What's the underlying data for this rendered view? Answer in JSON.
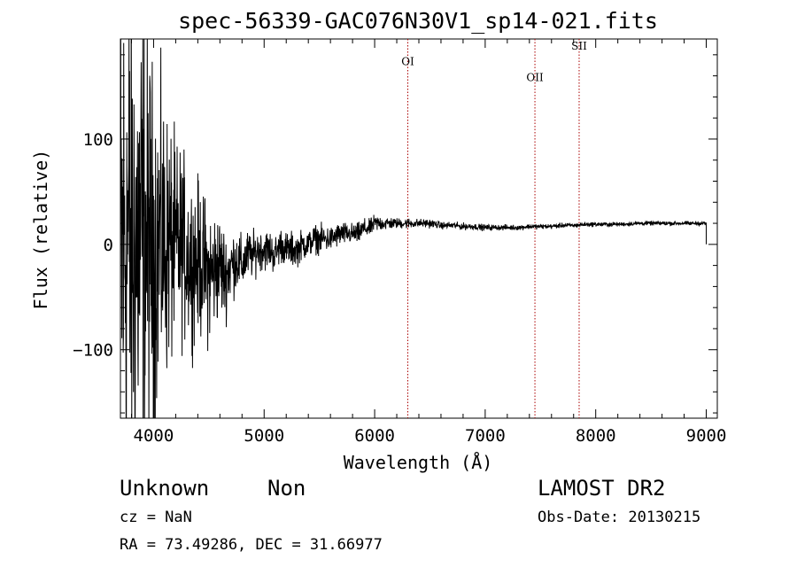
{
  "chart_data": {
    "type": "line",
    "title": "spec-56339-GAC076N30V1_sp14-021.fits",
    "xlabel": "Wavelength (Å)",
    "ylabel": "Flux (relative)",
    "xlim": [
      3700,
      9100
    ],
    "ylim": [
      -165,
      195
    ],
    "x_ticks": [
      4000,
      5000,
      6000,
      7000,
      8000,
      9000
    ],
    "x_tick_labels": [
      "4000",
      "5000",
      "6000",
      "7000",
      "8000",
      "9000"
    ],
    "y_ticks": [
      -100,
      0,
      100
    ],
    "y_tick_labels": [
      "−100",
      "0",
      "100"
    ],
    "grid": false,
    "line_color": "#000000",
    "marker_color": "#aa0000",
    "spectrum": {
      "x": [
        3700,
        3750,
        3800,
        3850,
        3900,
        3950,
        4000,
        4050,
        4100,
        4150,
        4200,
        4250,
        4300,
        4350,
        4400,
        4450,
        4500,
        4550,
        4600,
        4650,
        4700,
        4750,
        4800,
        4850,
        4900,
        4950,
        5000,
        5050,
        5100,
        5150,
        5200,
        5250,
        5300,
        5350,
        5400,
        5450,
        5500,
        5550,
        5600,
        5650,
        5700,
        5750,
        5800,
        5850,
        5900,
        5950,
        6000,
        6100,
        6200,
        6300,
        6400,
        6500,
        6600,
        6700,
        6800,
        6900,
        7000,
        7100,
        7200,
        7300,
        7400,
        7500,
        7600,
        7700,
        7800,
        7900,
        8000,
        8200,
        8400,
        8600,
        8800,
        9000
      ],
      "y": [
        -20,
        10,
        -5,
        0,
        5,
        5,
        -5,
        0,
        0,
        0,
        -5,
        0,
        -10,
        -15,
        -15,
        -20,
        -30,
        -25,
        -20,
        -30,
        -20,
        -15,
        -20,
        -10,
        -10,
        -5,
        -5,
        -5,
        -10,
        0,
        -5,
        -5,
        -5,
        0,
        0,
        5,
        5,
        5,
        5,
        8,
        10,
        10,
        10,
        10,
        15,
        15,
        20,
        20,
        20,
        20,
        20,
        20,
        18,
        18,
        17,
        17,
        16,
        16,
        16,
        16,
        17,
        17,
        17,
        18,
        18,
        19,
        19,
        19,
        20,
        20,
        20,
        20
      ],
      "noise": [
        180,
        170,
        160,
        150,
        140,
        120,
        100,
        90,
        80,
        70,
        60,
        55,
        50,
        45,
        45,
        40,
        40,
        35,
        30,
        25,
        20,
        18,
        16,
        14,
        13,
        12,
        12,
        11,
        11,
        10,
        10,
        10,
        9,
        9,
        8,
        8,
        8,
        8,
        7,
        7,
        7,
        6,
        6,
        6,
        6,
        5,
        5,
        4,
        3,
        3,
        2.5,
        2.5,
        2,
        2,
        2,
        1.8,
        1.8,
        1.6,
        1.6,
        1.5,
        1.5,
        1.4,
        1.4,
        1.4,
        1.3,
        1.3,
        1.3,
        1.2,
        1.2,
        1.2,
        1.2,
        1.2
      ]
    },
    "line_markers": [
      {
        "label": "OI",
        "x": 6300,
        "label_y": 170
      },
      {
        "label": "OII",
        "x": 7450,
        "label_y": 155
      },
      {
        "label": "SII",
        "x": 7850,
        "label_y": 185
      }
    ]
  },
  "info": {
    "object_class": "Unknown",
    "subclass": "Non",
    "redshift_line": "cz = NaN",
    "coords_line": "RA =  73.49286, DEC =  31.66977",
    "survey": "LAMOST DR2",
    "obs_date_line": "Obs-Date: 20130215"
  }
}
